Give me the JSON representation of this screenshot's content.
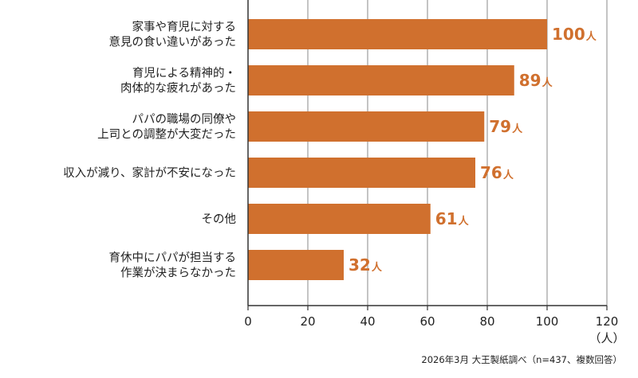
{
  "chart_data": {
    "type": "bar",
    "orientation": "horizontal",
    "categories": [
      [
        "家事や育児に対する",
        "意見の食い違いがあった"
      ],
      [
        "育児による精神的・",
        "肉体的な疲れがあった"
      ],
      [
        "パパの職場の同僚や",
        "上司との調整が大変だった"
      ],
      [
        "収入が減り、家計が不安になった"
      ],
      [
        "その他"
      ],
      [
        "育休中にパパが担当する",
        "作業が決まらなかった"
      ]
    ],
    "values": [
      100,
      89,
      79,
      76,
      61,
      32
    ],
    "value_suffix": "人",
    "xlim": [
      0,
      120
    ],
    "xticks": [
      "0",
      "20",
      "40",
      "60",
      "80",
      "100",
      "120"
    ],
    "xlabel": "（人）",
    "grid": "vertical",
    "bar_color": "#d0702e",
    "label_color": "#d0702e",
    "source": "2026年3月 大王製紙調べ（n=437、複数回答）"
  }
}
